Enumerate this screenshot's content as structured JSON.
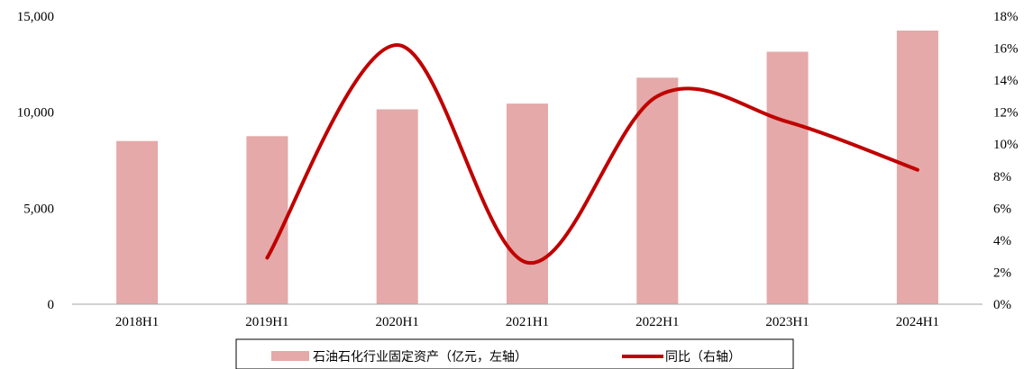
{
  "chart_data": {
    "type": "bar",
    "categories": [
      "2018H1",
      "2019H1",
      "2020H1",
      "2021H1",
      "2022H1",
      "2023H1",
      "2024H1"
    ],
    "series": [
      {
        "name": "石油石化行业固定资产（亿元，左轴）",
        "type": "bar",
        "axis": "left",
        "color": "#e4a9a8",
        "values": [
          8500,
          8750,
          10150,
          10450,
          11800,
          13150,
          14250
        ]
      },
      {
        "name": "同比（右轴）",
        "type": "line",
        "axis": "right",
        "color": "#c00000",
        "values": [
          null,
          2.9,
          16.2,
          2.6,
          13.0,
          11.4,
          8.4
        ]
      }
    ],
    "y_left": {
      "min": 0,
      "max": 15000,
      "ticks": [
        "0",
        "5,000",
        "10,000",
        "15,000"
      ],
      "tick_values": [
        0,
        5000,
        10000,
        15000
      ]
    },
    "y_right": {
      "min": 0,
      "max": 18,
      "ticks": [
        "0%",
        "2%",
        "4%",
        "6%",
        "8%",
        "10%",
        "12%",
        "14%",
        "16%",
        "18%"
      ],
      "tick_values": [
        0,
        2,
        4,
        6,
        8,
        10,
        12,
        14,
        16,
        18
      ]
    },
    "grid": false,
    "legend_position": "bottom"
  }
}
